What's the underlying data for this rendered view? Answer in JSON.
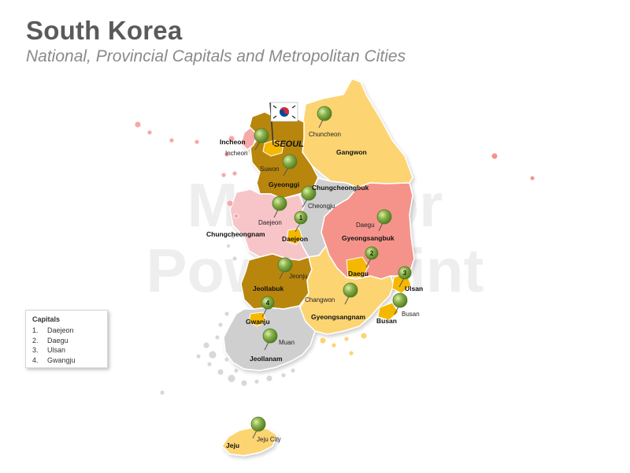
{
  "header": {
    "title": "South Korea",
    "subtitle": "National, Provincial Capitals and Metropolitan Cities"
  },
  "watermark": {
    "line1": "Maps for",
    "line2": "PowerPoint"
  },
  "legend": {
    "title": "Capitals",
    "items": [
      {
        "num": "1.",
        "name": "Daejeon"
      },
      {
        "num": "2.",
        "name": "Daegu"
      },
      {
        "num": "3.",
        "name": "Ulsan"
      },
      {
        "num": "4.",
        "name": "Gwangju"
      }
    ]
  },
  "regions": {
    "gangwon": {
      "label": "Gangwon",
      "color": "#fcd472"
    },
    "gyeonggi": {
      "label": "Gyeonggi",
      "color": "#b8860b"
    },
    "chungcheongbuk": {
      "label": "Chungcheongbuk",
      "color": "#cfcfcf"
    },
    "chungcheongnam": {
      "label": "Chungcheongnam",
      "color": "#f7c5c8"
    },
    "gyeongsangbuk": {
      "label": "Gyeongsangbuk",
      "color": "#f5938a"
    },
    "jeollabuk": {
      "label": "Jeollabuk",
      "color": "#b8860b"
    },
    "gyeongsangnam": {
      "label": "Gyeongsangnam",
      "color": "#fcd472"
    },
    "jeollanam": {
      "label": "Jeollanam",
      "color": "#cfcfcf"
    },
    "jeju": {
      "label": "Jeju",
      "color": "#fcd472"
    },
    "incheon": {
      "label": "Incheon",
      "color": "#f7a8a8"
    },
    "seoul": {
      "label": "SEOUL",
      "color": "#f5b800"
    },
    "daejeon": {
      "label": "Daejeon",
      "color": "#f5b800"
    },
    "daegu": {
      "label": "Daegu",
      "color": "#f5b800"
    },
    "ulsan": {
      "label": "Ulsan",
      "color": "#f5b800"
    },
    "busan": {
      "label": "Busan",
      "color": "#f5b800"
    },
    "gwangju": {
      "label": "Gwanju",
      "color": "#f5b800"
    }
  },
  "cities": {
    "chuncheon": "Chuncheon",
    "incheon": "Incheon",
    "suwon": "Suwon",
    "cheongju": "Cheongju",
    "daejeon": "Daejeon",
    "daegu": "Daegu",
    "jeonju": "Jeonju",
    "changwon": "Changwon",
    "busan": "Busan",
    "muan": "Muan",
    "jeju": "Jeju City"
  },
  "markers": {
    "daejeon": "1",
    "daegu": "2",
    "ulsan": "3",
    "gwangju": "4"
  },
  "colors": {
    "pin": "#8ab04a",
    "pin_dark": "#4f7a22",
    "flag_red": "#cd2e3a",
    "flag_blue": "#0047a0"
  }
}
